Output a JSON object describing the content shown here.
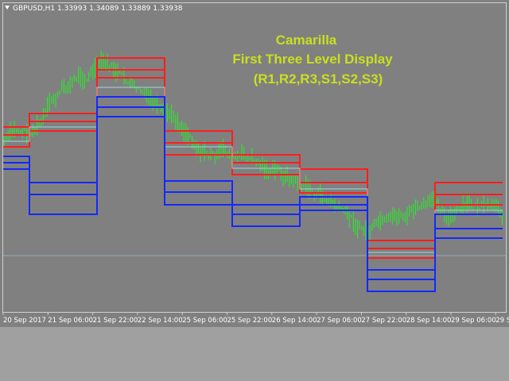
{
  "header": {
    "symbol_info": "GBPUSD,H1  1.33993 1.34089 1.33889 1.33938"
  },
  "annotation": {
    "lines": [
      "Camarilla",
      "First Three Level Display",
      "(R1,R2,R3,S1,S2,S3)"
    ]
  },
  "time_axis": {
    "labels": [
      "20 Sep 2017",
      "21 Sep 06:00",
      "21 Sep 22:00",
      "22 Sep 14:00",
      "25 Sep 06:00",
      "25 Sep 22:00",
      "26 Sep 14:00",
      "27 Sep 06:00",
      "27 Sep 22:00",
      "28 Sep 14:00",
      "29 Sep 06:00",
      "29 S"
    ]
  }
}
